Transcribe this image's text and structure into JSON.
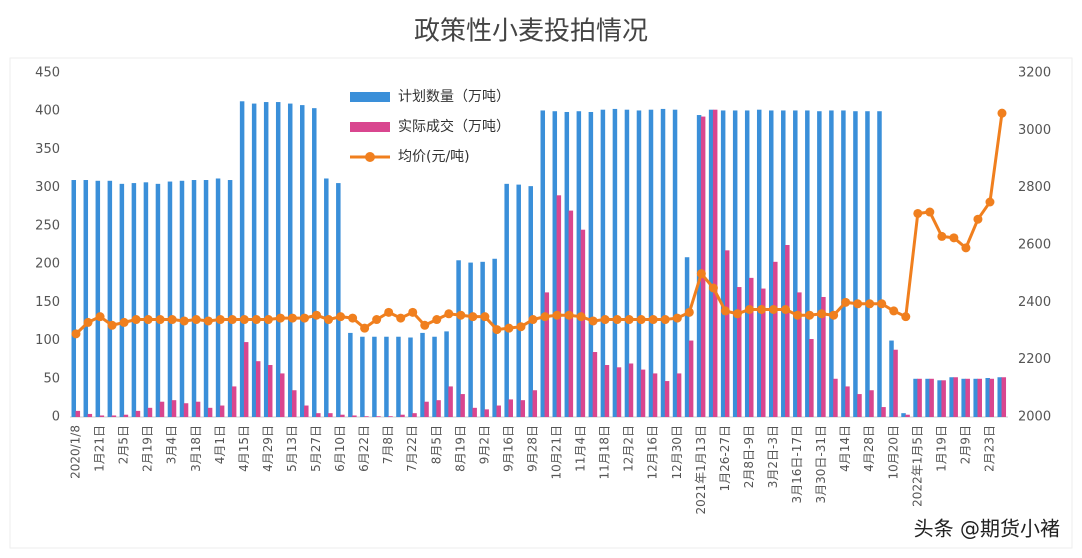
{
  "chart_data": {
    "type": "bar-line",
    "title": "政策性小麦投拍情况",
    "watermark": "头条 @期货小褚",
    "categories": [
      "2020/1/8",
      null,
      "1月21日",
      null,
      "2月5日",
      null,
      "2月19日",
      null,
      "3月4日",
      null,
      "3月18日",
      null,
      "4月1日",
      null,
      "4月15日",
      null,
      "4月29日",
      null,
      "5月13日",
      null,
      "5月27日",
      null,
      "6月10日",
      null,
      "6月22日",
      null,
      "7月8日",
      null,
      "7月22日",
      null,
      "8月5日",
      null,
      "8月19日",
      null,
      "9月2日",
      null,
      "9月16日",
      null,
      "9月28日",
      null,
      "10月21日",
      null,
      "11月4日",
      null,
      "11月18日",
      null,
      "12月2日",
      null,
      "12月16日",
      null,
      "12月30日",
      null,
      "2021年1月13日",
      null,
      "1月26-27日",
      null,
      "2月8日-9日",
      null,
      "3月2日-3日",
      null,
      "3月16日-17日",
      null,
      "3月30日-31日",
      null,
      "4月14日",
      null,
      "4月28日",
      null,
      "10月20日",
      null,
      "2022年1月5日",
      null,
      "1月19日",
      null,
      "2月9日",
      null,
      "2月23日",
      null
    ],
    "series": [
      {
        "name": "计划数量（万吨）",
        "color": "#3a8fd9",
        "kind": "bar",
        "values": [
          310,
          310,
          309,
          309,
          305,
          306,
          307,
          305,
          308,
          309,
          310,
          310,
          312,
          310,
          413,
          410,
          412,
          412,
          410,
          408,
          404,
          312,
          306,
          110,
          105,
          105,
          105,
          105,
          104,
          110,
          105,
          112,
          205,
          202,
          203,
          207,
          305,
          304,
          302,
          401,
          400,
          399,
          400,
          399,
          402,
          403,
          402,
          401,
          402,
          403,
          402,
          209,
          395,
          402,
          401,
          401,
          401,
          402,
          401,
          401,
          401,
          401,
          400,
          401,
          401,
          400,
          400,
          400,
          100,
          5,
          50,
          50,
          48,
          52,
          50,
          50,
          51,
          52
        ]
      },
      {
        "name": "实际成交（万吨）",
        "color": "#d9468f",
        "kind": "bar",
        "values": [
          8,
          4,
          2,
          2,
          3,
          8,
          12,
          20,
          22,
          18,
          20,
          12,
          15,
          40,
          98,
          73,
          68,
          57,
          35,
          15,
          5,
          5,
          3,
          2,
          1,
          1,
          1,
          3,
          5,
          20,
          22,
          40,
          30,
          12,
          10,
          15,
          23,
          22,
          35,
          163,
          290,
          270,
          245,
          85,
          68,
          65,
          70,
          62,
          57,
          47,
          57,
          100,
          393,
          402,
          218,
          170,
          182,
          168,
          203,
          225,
          163,
          102,
          157,
          50,
          40,
          30,
          35,
          13,
          88,
          3,
          50,
          50,
          48,
          52,
          50,
          50,
          50,
          52
        ]
      },
      {
        "name": "均价(元/吨)",
        "color": "#f07f1e",
        "kind": "line",
        "axis": "y2",
        "values": [
          2290,
          2330,
          2350,
          2320,
          2330,
          2340,
          2340,
          2340,
          2340,
          2335,
          2340,
          2335,
          2340,
          2340,
          2340,
          2340,
          2340,
          2345,
          2345,
          2345,
          2355,
          2340,
          2350,
          2345,
          2310,
          2340,
          2365,
          2345,
          2365,
          2320,
          2340,
          2360,
          2355,
          2350,
          2350,
          2305,
          2310,
          2315,
          2340,
          2350,
          2355,
          2355,
          2350,
          2335,
          2340,
          2340,
          2340,
          2340,
          2340,
          2340,
          2345,
          2365,
          2500,
          2450,
          2370,
          2360,
          2375,
          2375,
          2375,
          2375,
          2355,
          2355,
          2360,
          2355,
          2400,
          2395,
          2395,
          2395,
          2370,
          2350,
          2710,
          2715,
          2630,
          2625,
          2590,
          2690,
          2750,
          3060
        ]
      }
    ],
    "ylim": [
      0,
      450
    ],
    "yticks": [
      0,
      50,
      100,
      150,
      200,
      250,
      300,
      350,
      400,
      450
    ],
    "y2lim": [
      2000,
      3200
    ],
    "y2ticks": [
      2000,
      2200,
      2400,
      2600,
      2800,
      3000,
      3200
    ]
  }
}
